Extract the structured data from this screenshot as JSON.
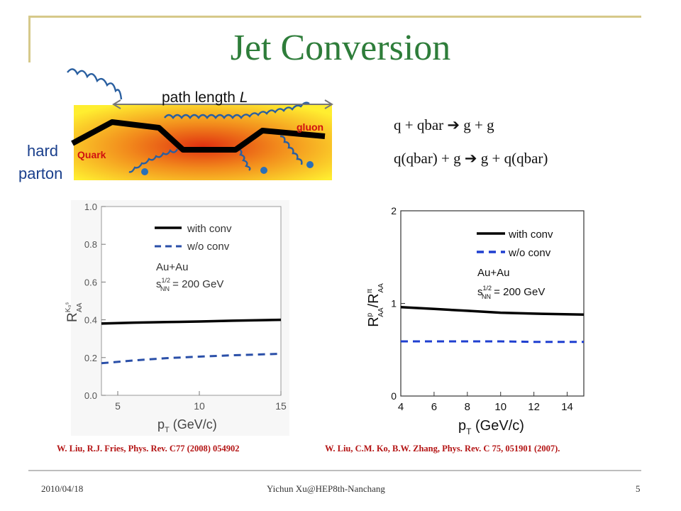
{
  "slide": {
    "title": "Jet Conversion",
    "date": "2010/04/18",
    "author": "Yichun Xu@HEP8th-Nanchang",
    "page_number": "5"
  },
  "diagram": {
    "path_length_label": "path length ",
    "path_length_var": "L",
    "gluon_label": "gluon",
    "quark_label": "Quark",
    "hard_label": "hard",
    "parton_label": "parton"
  },
  "equations": {
    "line1": {
      "lhs": "q + qbar ",
      "arrow": "➔",
      "rhs": " g + g"
    },
    "line2": {
      "lhs": "q(qbar) + g ",
      "arrow": "➔",
      "rhs": " g + q(qbar)"
    }
  },
  "references": {
    "left": "W. Liu, R.J. Fries, Phys. Rev. C77 (2008) 054902",
    "right": "W. Liu, C.M. Ko, B.W. Zhang, Phys. Rev. C 75, 051901 (2007)."
  },
  "chart_data": [
    {
      "type": "line",
      "ylabel": {
        "base": "R",
        "sup": "K₀ˢ",
        "sub": "AA"
      },
      "xlabel": {
        "base": "p",
        "sub": "T",
        "rest": " (GeV/c)"
      },
      "xlim": [
        4,
        15
      ],
      "ylim": [
        0,
        1
      ],
      "xticks": [
        5,
        10,
        15
      ],
      "yticks": [
        0.0,
        0.2,
        0.4,
        0.6,
        0.8,
        1.0
      ],
      "ytick_labels": [
        "0.0",
        "0.2",
        "0.4",
        "0.6",
        "0.8",
        "1.0"
      ],
      "legend": {
        "with_conv": "with conv",
        "wo_conv": "w/o conv",
        "system": "Au+Au",
        "energy_prefix": "s",
        "energy_sup": "1/2",
        "energy_sub": "NN",
        "energy_value": " = 200 GeV"
      },
      "series": [
        {
          "name": "with conv",
          "style": "solid",
          "color": "#000000",
          "x": [
            4,
            6,
            8,
            10,
            12,
            15
          ],
          "y": [
            0.38,
            0.385,
            0.388,
            0.391,
            0.395,
            0.4
          ]
        },
        {
          "name": "w/o conv",
          "style": "dashed",
          "color": "#2a4fa8",
          "x": [
            4,
            6,
            8,
            10,
            12,
            15
          ],
          "y": [
            0.17,
            0.185,
            0.197,
            0.205,
            0.212,
            0.22
          ]
        }
      ]
    },
    {
      "type": "line",
      "ylabel": {
        "base": "R",
        "sup1": "p",
        "sub1": "AA",
        "slash": "/R",
        "sup2": "π",
        "sub2": "AA"
      },
      "xlabel": {
        "base": "p",
        "sub": "T",
        "rest": " (GeV/c)"
      },
      "xlim": [
        4,
        15
      ],
      "ylim": [
        0,
        2
      ],
      "xticks": [
        4,
        6,
        8,
        10,
        12,
        14
      ],
      "yticks": [
        0,
        1,
        2
      ],
      "ytick_labels": [
        "0",
        "1",
        "2"
      ],
      "legend": {
        "with_conv": "with conv",
        "wo_conv": "w/o conv",
        "system": "Au+Au",
        "energy_prefix": "s",
        "energy_sup": "1/2",
        "energy_sub": "NN",
        "energy_value": " = 200 GeV"
      },
      "series": [
        {
          "name": "with conv",
          "style": "solid",
          "color": "#000000",
          "x": [
            4,
            6,
            8,
            10,
            12,
            15
          ],
          "y": [
            0.96,
            0.94,
            0.92,
            0.9,
            0.89,
            0.88
          ]
        },
        {
          "name": "w/o conv",
          "style": "dashed",
          "color": "#1f3fd0",
          "x": [
            4,
            6,
            8,
            10,
            12,
            15
          ],
          "y": [
            0.59,
            0.59,
            0.59,
            0.59,
            0.585,
            0.585
          ]
        }
      ]
    }
  ]
}
